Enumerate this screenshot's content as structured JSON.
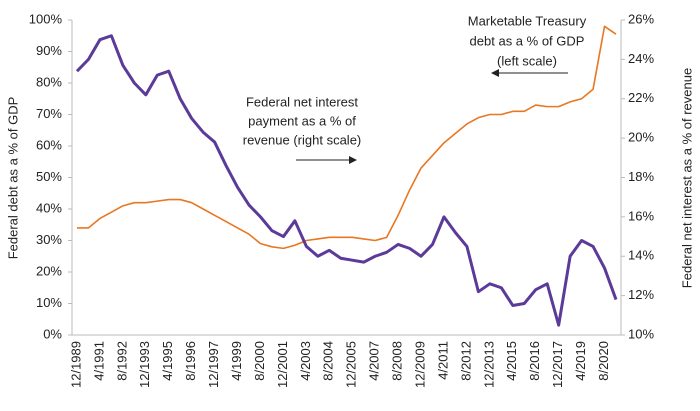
{
  "chart_data": {
    "type": "line",
    "y_label": "Federal debt as a % of GDP",
    "y2_label": "Federal net interest as a % of revenue",
    "annotations": [
      {
        "lines": [
          "Marketable Treasury",
          "debt as a % of GDP",
          "(left scale)"
        ]
      },
      {
        "lines": [
          "Federal net interest",
          "payment as a % of",
          "revenue (right scale)"
        ]
      }
    ],
    "categories": [
      "12/1989",
      null,
      "4/1991",
      null,
      "8/1992",
      null,
      "12/1993",
      null,
      "4/1995",
      null,
      "8/1996",
      null,
      "12/1997",
      null,
      "4/1999",
      null,
      "8/2000",
      null,
      "12/2001",
      null,
      "4/2003",
      null,
      "8/2004",
      null,
      "12/2005",
      null,
      "4/2007",
      null,
      "8/2008",
      null,
      "12/2009",
      null,
      "4/2011",
      null,
      "8/2012",
      null,
      "12/2013",
      null,
      "4/2015",
      null,
      "8/2016",
      null,
      "12/2017",
      null,
      "4/2019",
      null,
      "8/2020",
      null
    ],
    "series": [
      {
        "color": "#e87722",
        "axis": "y",
        "values": [
          34,
          34,
          37,
          39,
          41,
          42,
          42,
          42.5,
          43,
          43,
          42,
          40,
          38,
          36,
          34,
          32,
          29,
          28,
          27.5,
          28.5,
          30,
          30.5,
          31,
          31,
          31,
          30.5,
          30,
          31,
          38,
          46,
          53,
          57,
          61,
          64,
          67,
          69,
          70,
          70,
          71,
          71,
          73,
          72.5,
          72.5,
          74,
          75,
          78,
          98,
          95.5
        ]
      },
      {
        "color": "#5b3a99",
        "axis": "y2",
        "values": [
          23.4,
          24.0,
          25.0,
          25.2,
          23.7,
          22.8,
          22.2,
          23.2,
          23.4,
          22.0,
          21.0,
          20.3,
          19.8,
          18.6,
          17.5,
          16.6,
          16.0,
          15.3,
          15.0,
          15.8,
          14.5,
          14.0,
          14.3,
          13.9,
          13.8,
          13.7,
          14.0,
          14.2,
          14.6,
          14.4,
          14.0,
          14.6,
          16.0,
          15.2,
          14.5,
          12.2,
          12.6,
          12.4,
          11.5,
          11.6,
          12.3,
          12.6,
          10.5,
          14.0,
          14.8,
          14.5,
          13.4,
          11.8
        ]
      }
    ],
    "ylim": [
      0,
      100
    ],
    "yticks": [
      {
        "value": 0,
        "label": "0%"
      },
      {
        "value": 10,
        "label": "10%"
      },
      {
        "value": 20,
        "label": "20%"
      },
      {
        "value": 30,
        "label": "30%"
      },
      {
        "value": 40,
        "label": "40%"
      },
      {
        "value": 50,
        "label": "50%"
      },
      {
        "value": 60,
        "label": "60%"
      },
      {
        "value": 70,
        "label": "70%"
      },
      {
        "value": 80,
        "label": "80%"
      },
      {
        "value": 90,
        "label": "90%"
      },
      {
        "value": 100,
        "label": "100%"
      }
    ],
    "y2lim": [
      10,
      26
    ],
    "y2ticks": [
      {
        "value": 10,
        "label": "10%"
      },
      {
        "value": 12,
        "label": "12%"
      },
      {
        "value": 14,
        "label": "14%"
      },
      {
        "value": 16,
        "label": "16%"
      },
      {
        "value": 18,
        "label": "18%"
      },
      {
        "value": 20,
        "label": "20%"
      },
      {
        "value": 22,
        "label": "22%"
      },
      {
        "value": 24,
        "label": "24%"
      },
      {
        "value": 26,
        "label": "26%"
      }
    ]
  }
}
